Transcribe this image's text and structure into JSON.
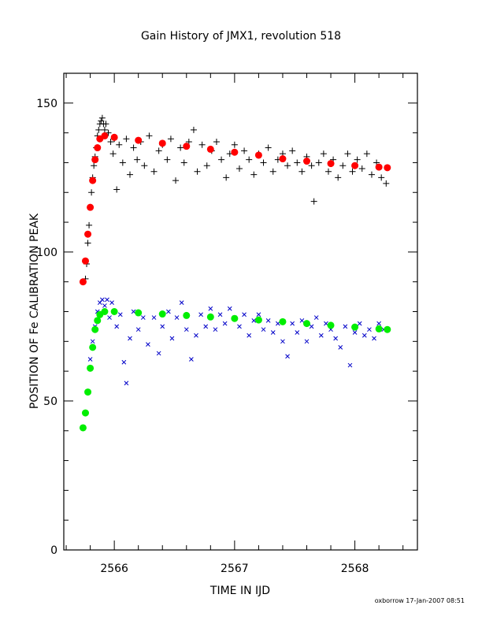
{
  "chart_data": {
    "type": "scatter",
    "title": "Gain History of JMX1, revolution 518",
    "xlabel": "TIME IN IJD",
    "ylabel": "POSITION OF Fe CALIBRATION PEAK",
    "xlim": [
      2565.58,
      2568.52
    ],
    "ylim": [
      0,
      160
    ],
    "xticks": [
      2566,
      2567,
      2568
    ],
    "yticks": [
      0,
      50,
      100,
      150
    ],
    "grid": false,
    "legend": "none",
    "series": [
      {
        "marker": "plus",
        "color": "#000000",
        "role": "upper-measured",
        "points": [
          [
            2565.76,
            91
          ],
          [
            2565.77,
            96
          ],
          [
            2565.78,
            103
          ],
          [
            2565.79,
            109
          ],
          [
            2565.8,
            115
          ],
          [
            2565.81,
            120
          ],
          [
            2565.82,
            125
          ],
          [
            2565.83,
            129
          ],
          [
            2565.84,
            132
          ],
          [
            2565.85,
            135
          ],
          [
            2565.86,
            139
          ],
          [
            2565.87,
            141
          ],
          [
            2565.88,
            143
          ],
          [
            2565.89,
            144
          ],
          [
            2565.9,
            145
          ],
          [
            2565.91,
            143
          ],
          [
            2565.92,
            141
          ],
          [
            2565.93,
            143
          ],
          [
            2565.95,
            140
          ],
          [
            2565.97,
            137
          ],
          [
            2565.99,
            133
          ],
          [
            2566.0,
            138
          ],
          [
            2566.02,
            121
          ],
          [
            2566.04,
            136
          ],
          [
            2566.07,
            130
          ],
          [
            2566.1,
            138
          ],
          [
            2566.13,
            126
          ],
          [
            2566.16,
            135
          ],
          [
            2566.19,
            131
          ],
          [
            2566.22,
            137
          ],
          [
            2566.25,
            129
          ],
          [
            2566.29,
            139
          ],
          [
            2566.33,
            127
          ],
          [
            2566.37,
            134
          ],
          [
            2566.4,
            136
          ],
          [
            2566.44,
            131
          ],
          [
            2566.47,
            138
          ],
          [
            2566.51,
            124
          ],
          [
            2566.55,
            135
          ],
          [
            2566.58,
            130
          ],
          [
            2566.62,
            137
          ],
          [
            2566.66,
            141
          ],
          [
            2566.69,
            127
          ],
          [
            2566.73,
            136
          ],
          [
            2566.77,
            129
          ],
          [
            2566.81,
            134
          ],
          [
            2566.85,
            137
          ],
          [
            2566.89,
            131
          ],
          [
            2566.93,
            125
          ],
          [
            2566.96,
            133
          ],
          [
            2567.0,
            136
          ],
          [
            2567.04,
            128
          ],
          [
            2567.08,
            134
          ],
          [
            2567.12,
            131
          ],
          [
            2567.16,
            126
          ],
          [
            2567.2,
            133
          ],
          [
            2567.24,
            130
          ],
          [
            2567.28,
            135
          ],
          [
            2567.32,
            127
          ],
          [
            2567.36,
            131
          ],
          [
            2567.4,
            133
          ],
          [
            2567.44,
            129
          ],
          [
            2567.48,
            134
          ],
          [
            2567.52,
            130
          ],
          [
            2567.56,
            127
          ],
          [
            2567.6,
            132
          ],
          [
            2567.64,
            129
          ],
          [
            2567.66,
            117
          ],
          [
            2567.7,
            130
          ],
          [
            2567.74,
            133
          ],
          [
            2567.78,
            127
          ],
          [
            2567.82,
            131
          ],
          [
            2567.86,
            125
          ],
          [
            2567.9,
            129
          ],
          [
            2567.94,
            133
          ],
          [
            2567.98,
            127
          ],
          [
            2568.02,
            131
          ],
          [
            2568.06,
            128
          ],
          [
            2568.1,
            133
          ],
          [
            2568.14,
            126
          ],
          [
            2568.18,
            130
          ],
          [
            2568.22,
            125
          ],
          [
            2568.26,
            123
          ]
        ]
      },
      {
        "marker": "circle",
        "color": "#ff0000",
        "role": "upper-fit",
        "points": [
          [
            2565.74,
            90
          ],
          [
            2565.76,
            97
          ],
          [
            2565.78,
            106
          ],
          [
            2565.8,
            115
          ],
          [
            2565.82,
            124
          ],
          [
            2565.84,
            131
          ],
          [
            2565.86,
            135
          ],
          [
            2565.88,
            138
          ],
          [
            2565.92,
            139
          ],
          [
            2566.0,
            138.5
          ],
          [
            2566.2,
            137.5
          ],
          [
            2566.4,
            136.5
          ],
          [
            2566.6,
            135.5
          ],
          [
            2566.8,
            134.5
          ],
          [
            2567.0,
            133.5
          ],
          [
            2567.2,
            132.5
          ],
          [
            2567.4,
            131.3
          ],
          [
            2567.6,
            130.5
          ],
          [
            2567.8,
            129.7
          ],
          [
            2568.0,
            129
          ],
          [
            2568.2,
            128.5
          ],
          [
            2568.27,
            128.3
          ]
        ]
      },
      {
        "marker": "cross",
        "color": "#0000c8",
        "role": "lower-measured",
        "points": [
          [
            2565.8,
            64
          ],
          [
            2565.82,
            70
          ],
          [
            2565.84,
            75
          ],
          [
            2565.86,
            80
          ],
          [
            2565.88,
            83
          ],
          [
            2565.9,
            84
          ],
          [
            2565.92,
            82
          ],
          [
            2565.94,
            84
          ],
          [
            2565.96,
            78
          ],
          [
            2565.98,
            83
          ],
          [
            2566.02,
            75
          ],
          [
            2566.05,
            79
          ],
          [
            2566.08,
            63
          ],
          [
            2566.1,
            56
          ],
          [
            2566.13,
            71
          ],
          [
            2566.16,
            80
          ],
          [
            2566.2,
            74
          ],
          [
            2566.24,
            78
          ],
          [
            2566.28,
            69
          ],
          [
            2566.33,
            78
          ],
          [
            2566.37,
            66
          ],
          [
            2566.4,
            75
          ],
          [
            2566.45,
            80
          ],
          [
            2566.48,
            71
          ],
          [
            2566.52,
            78
          ],
          [
            2566.56,
            83
          ],
          [
            2566.6,
            74
          ],
          [
            2566.64,
            64
          ],
          [
            2566.68,
            72
          ],
          [
            2566.72,
            79
          ],
          [
            2566.76,
            75
          ],
          [
            2566.8,
            81
          ],
          [
            2566.84,
            74
          ],
          [
            2566.88,
            79
          ],
          [
            2566.92,
            76
          ],
          [
            2566.96,
            81
          ],
          [
            2567.0,
            78
          ],
          [
            2567.04,
            75
          ],
          [
            2567.08,
            79
          ],
          [
            2567.12,
            72
          ],
          [
            2567.16,
            77
          ],
          [
            2567.2,
            79
          ],
          [
            2567.24,
            74
          ],
          [
            2567.28,
            77
          ],
          [
            2567.32,
            73
          ],
          [
            2567.36,
            76
          ],
          [
            2567.4,
            70
          ],
          [
            2567.44,
            65
          ],
          [
            2567.48,
            76
          ],
          [
            2567.52,
            73
          ],
          [
            2567.56,
            77
          ],
          [
            2567.6,
            70
          ],
          [
            2567.64,
            75
          ],
          [
            2567.68,
            78
          ],
          [
            2567.72,
            72
          ],
          [
            2567.76,
            76
          ],
          [
            2567.8,
            74
          ],
          [
            2567.84,
            71
          ],
          [
            2567.88,
            68
          ],
          [
            2567.92,
            75
          ],
          [
            2567.96,
            62
          ],
          [
            2568.0,
            73
          ],
          [
            2568.04,
            76
          ],
          [
            2568.08,
            72
          ],
          [
            2568.12,
            74
          ],
          [
            2568.16,
            71
          ],
          [
            2568.2,
            76
          ],
          [
            2568.24,
            74
          ]
        ]
      },
      {
        "marker": "circle",
        "color": "#00ee00",
        "role": "lower-fit",
        "points": [
          [
            2565.74,
            41
          ],
          [
            2565.76,
            46
          ],
          [
            2565.78,
            53
          ],
          [
            2565.8,
            61
          ],
          [
            2565.82,
            68
          ],
          [
            2565.84,
            74
          ],
          [
            2565.86,
            77
          ],
          [
            2565.88,
            79
          ],
          [
            2565.92,
            80
          ],
          [
            2566.0,
            80
          ],
          [
            2566.2,
            79.6
          ],
          [
            2566.4,
            79.2
          ],
          [
            2566.6,
            78.7
          ],
          [
            2566.8,
            78.2
          ],
          [
            2567.0,
            77.7
          ],
          [
            2567.2,
            77.2
          ],
          [
            2567.4,
            76.6
          ],
          [
            2567.6,
            76
          ],
          [
            2567.8,
            75.4
          ],
          [
            2568.0,
            74.8
          ],
          [
            2568.2,
            74.2
          ],
          [
            2568.27,
            74
          ]
        ]
      }
    ]
  },
  "footer": {
    "stamp": "oxborrow 17-Jan-2007 08:51"
  }
}
